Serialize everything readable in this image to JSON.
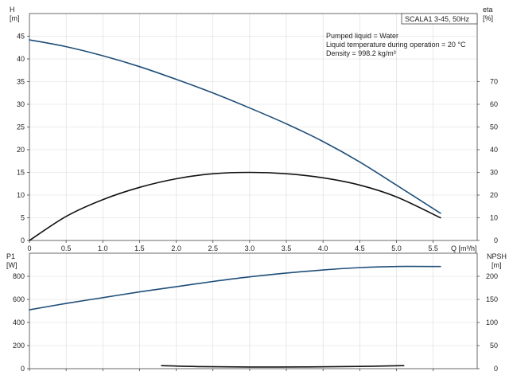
{
  "model_label": "SCALA1 3-45, 50Hz",
  "info_lines": [
    "Pumped liquid = Water",
    "Liquid temperature during operation = 20 °C",
    "Density = 998.2 kg/m³"
  ],
  "colors": {
    "head_curve": "#1f4e79",
    "efficiency_curve": "#111111",
    "power_curve": "#1f4e79",
    "npsh_curve": "#111111"
  },
  "chart_data": [
    {
      "type": "line",
      "panel": "top",
      "x_axis": {
        "label": "Q [m³/h]",
        "range": [
          0,
          6.1
        ],
        "ticks": [
          0,
          0.5,
          1.0,
          1.5,
          2.0,
          2.5,
          3.0,
          3.5,
          4.0,
          4.5,
          5.0,
          5.5
        ],
        "tick_labels": [
          "0",
          "0.5",
          "1.0",
          "1.5",
          "2.0",
          "2.5",
          "3.0",
          "3.5",
          "4.0",
          "4.5",
          "5.0",
          "5.5"
        ]
      },
      "y_left": {
        "label_line1": "H",
        "label_line2": "[m]",
        "range": [
          0,
          50
        ],
        "ticks": [
          0,
          5,
          10,
          15,
          20,
          25,
          30,
          35,
          40,
          45
        ]
      },
      "y_right": {
        "label_line1": "eta",
        "label_line2": "[%]",
        "range": [
          0,
          100
        ],
        "ticks": [
          0,
          10,
          20,
          30,
          40,
          50,
          60,
          70
        ]
      },
      "grid": true,
      "series": [
        {
          "axis": "left",
          "color_key": "head_curve",
          "x": [
            0,
            0.5,
            1.0,
            1.5,
            2.0,
            2.5,
            3.0,
            3.5,
            4.0,
            4.5,
            5.0,
            5.6
          ],
          "y": [
            44.2,
            42.7,
            40.7,
            38.3,
            35.5,
            32.5,
            29.2,
            25.7,
            21.8,
            17.3,
            12.2,
            6.0
          ]
        },
        {
          "axis": "right",
          "color_key": "efficiency_curve",
          "x": [
            0,
            0.5,
            1.0,
            1.5,
            2.0,
            2.5,
            3.0,
            3.5,
            4.0,
            4.5,
            5.0,
            5.6
          ],
          "y": [
            0,
            10.6,
            18.0,
            23.4,
            27.2,
            29.4,
            30.0,
            29.4,
            27.6,
            24.4,
            19.2,
            10.0
          ]
        }
      ]
    },
    {
      "type": "line",
      "panel": "bottom",
      "x_axis": {
        "range": [
          0,
          6.1
        ]
      },
      "y_left": {
        "label_line1": "P1",
        "label_line2": "[W]",
        "range": [
          0,
          1000
        ],
        "ticks": [
          0,
          200,
          400,
          600,
          800
        ]
      },
      "y_right": {
        "label_line1": "NPSH",
        "label_line2": "[m]",
        "range": [
          0,
          250
        ],
        "ticks": [
          0,
          50,
          100,
          150,
          200
        ]
      },
      "grid": true,
      "series": [
        {
          "axis": "left",
          "color_key": "power_curve",
          "x": [
            0,
            0.5,
            1.0,
            1.5,
            2.0,
            2.5,
            3.0,
            3.5,
            4.0,
            4.5,
            5.0,
            5.6
          ],
          "y": [
            510,
            565,
            615,
            665,
            710,
            755,
            795,
            828,
            855,
            875,
            885,
            885
          ]
        },
        {
          "axis": "right",
          "color_key": "npsh_curve",
          "x": [
            1.8,
            2.3,
            3.0,
            3.8,
            4.5,
            5.1
          ],
          "y": [
            6.5,
            4.5,
            3.5,
            3.8,
            4.8,
            6.5
          ]
        }
      ]
    }
  ]
}
